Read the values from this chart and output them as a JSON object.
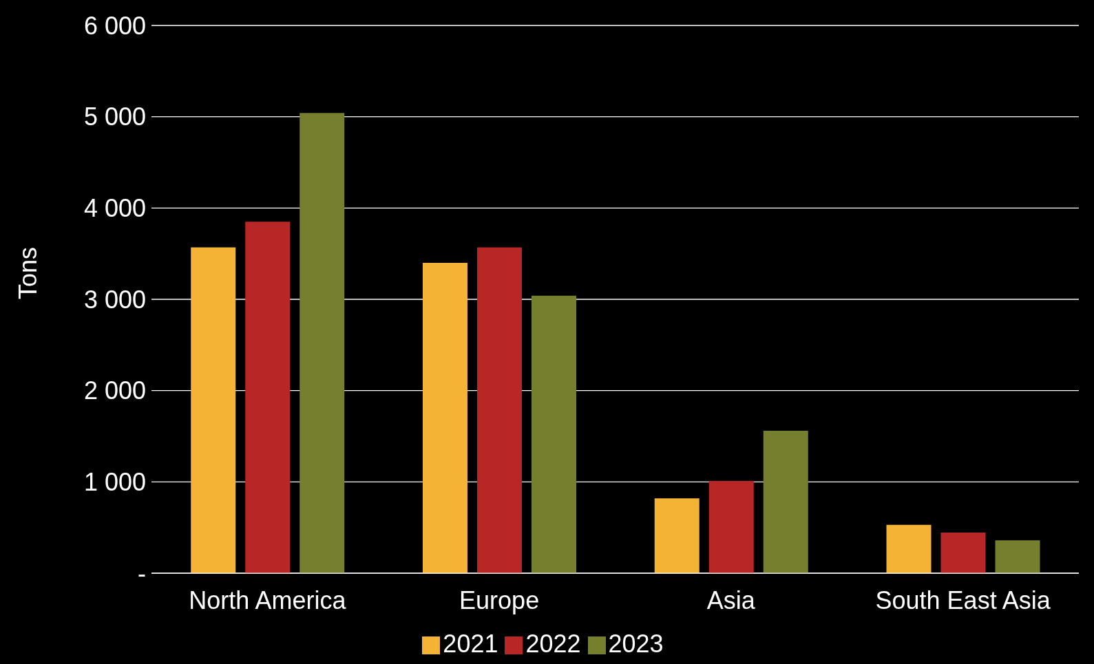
{
  "chart_data": {
    "type": "bar",
    "ylabel": "Tons",
    "categories": [
      "North America",
      "Europe",
      "Asia",
      "South East Asia"
    ],
    "series": [
      {
        "name": "2021",
        "color": "#f4b335",
        "values": [
          3570,
          3400,
          820,
          530
        ]
      },
      {
        "name": "2022",
        "color": "#b82626",
        "values": [
          3850,
          3570,
          1010,
          445
        ]
      },
      {
        "name": "2023",
        "color": "#767f2e",
        "values": [
          5040,
          3040,
          1560,
          360
        ]
      }
    ],
    "ylim": [
      0,
      6000
    ],
    "yticks": [
      {
        "value": 0,
        "label": "-"
      },
      {
        "value": 1000,
        "label": "1 000"
      },
      {
        "value": 2000,
        "label": "2 000"
      },
      {
        "value": 3000,
        "label": "3 000"
      },
      {
        "value": 4000,
        "label": "4 000"
      },
      {
        "value": 5000,
        "label": "5 000"
      },
      {
        "value": 6000,
        "label": "6 000"
      }
    ],
    "grid": "y",
    "legend": "bottom"
  }
}
